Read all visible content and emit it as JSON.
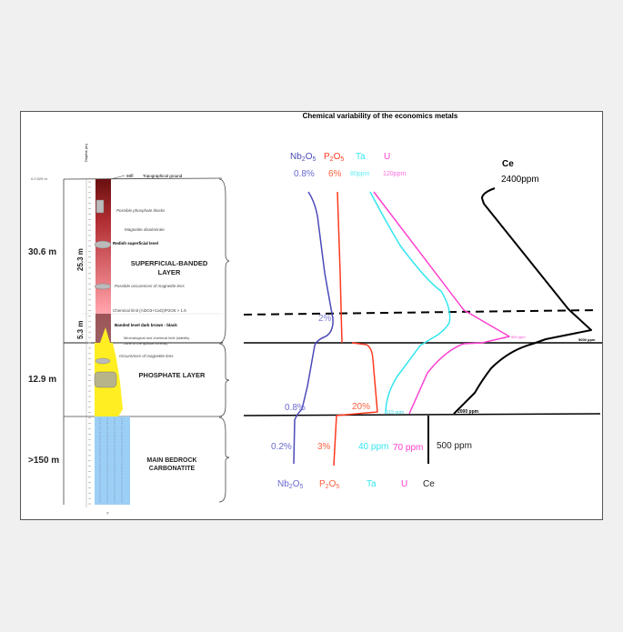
{
  "title": "Chemical variability of the economics metals",
  "colors": {
    "nb2o5": "#4a4ab8",
    "p2o5": "#ff3a1e",
    "ta": "#33e6f0",
    "u": "#ff40d0",
    "ce": "#000000",
    "superficial": "#c0303a",
    "phosphate": "#ffee22",
    "bedrock": "#9ccff5"
  },
  "log": {
    "depth_axis_label": "Depths (m)",
    "top_elevation": "0.0 525 m",
    "soil": "soil",
    "topographical_ground": "Topographical ground",
    "thicknesses": {
      "superficial_total": "30.6 m",
      "upper": "25.3 m",
      "banded": "5.3 m",
      "phosphate": "12.9 m",
      "bedrock": ">150 m"
    },
    "notes": {
      "phosphate_blocks": "Possible phosphate blocks",
      "magnetite": "Magnetite disséminée",
      "redish": "Redish superficial level",
      "magnetite_lens": "Possible occurences of magnetite lens",
      "chem_limit": "Chemical limit (Al2O3+CaO)/P2O5 > 1.5",
      "banded": "Banded level dark brown - black",
      "min_limit_1": "Mineralogical and chemical limit (stability",
      "min_limit_2": "zone of the apatite mineral)",
      "occ_magnetite": "Occurences of magnetite lens",
      "bottom": "?"
    },
    "layers": {
      "superficial_1": "SUPERFICIAL-BANDED",
      "superficial_2": "LAYER",
      "phosphate": "PHOSPHATE LAYER",
      "bedrock_1": "MAIN BEDROCK",
      "bedrock_2": "CARBONATITE"
    }
  },
  "elements": {
    "header": {
      "nb": "Nb2O5",
      "p": "P2O5",
      "ta": "Ta",
      "u": "U",
      "ce": "Ce"
    },
    "top_values": {
      "nb": "0.8%",
      "p": "6%",
      "ta": "80ppm",
      "u": "120ppm",
      "ce": "2400ppm"
    },
    "mid_values": {
      "nb": "2%",
      "u": "500 ppm",
      "ce": "5000 ppm"
    },
    "phosphate_values": {
      "nb": "0.8%",
      "p": "20%",
      "ta": "115 ppm",
      "ce": "2000 ppm"
    },
    "bedrock_values": {
      "nb": "0.2%",
      "p": "3%",
      "ta": "40 ppm",
      "u": "70 ppm",
      "ce": "500 ppm"
    },
    "footer": {
      "nb": "Nb2O5",
      "p": "P2O5",
      "ta": "Ta",
      "u": "U",
      "ce": "Ce"
    }
  }
}
